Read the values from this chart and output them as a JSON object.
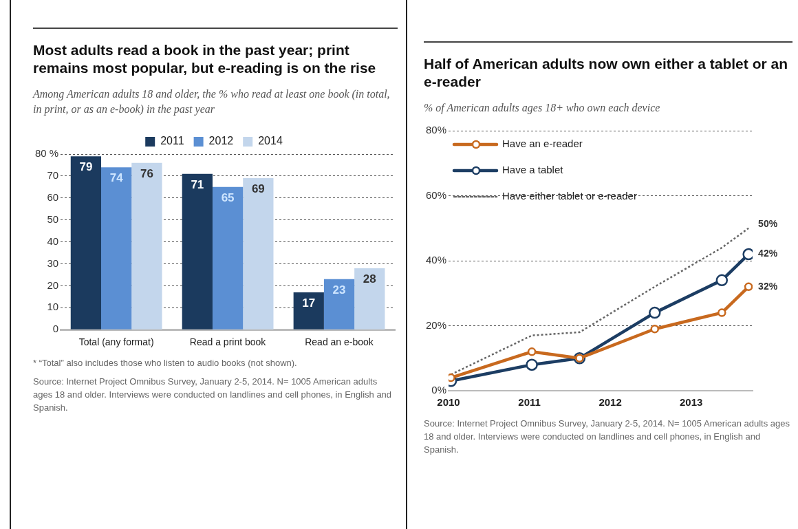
{
  "chart_data": [
    {
      "type": "bar",
      "title": "Most adults read a book in the past year; print remains most popular, but e-reading is on the rise",
      "subtitle": "Among American adults 18 and older, the % who read at least one book (in total, in print, or as an e-book) in the past year",
      "categories": [
        "Total (any format)",
        "Read a print book",
        "Read an e-book"
      ],
      "series": [
        {
          "name": "2011",
          "color": "#1b3a5e",
          "values": [
            79,
            71,
            17
          ]
        },
        {
          "name": "2012",
          "color": "#5b8fd3",
          "values": [
            74,
            65,
            23
          ]
        },
        {
          "name": "2014",
          "color": "#c3d6ec",
          "values": [
            76,
            69,
            28
          ]
        }
      ],
      "ylim": [
        0,
        80
      ],
      "yticks": [
        0,
        10,
        20,
        30,
        40,
        50,
        60,
        70,
        {
          "value": 80,
          "label": "80 %"
        }
      ],
      "grid": "y",
      "legend": "top",
      "data_labels": true,
      "annotations": [
        "* “Total” also includes those who listen to audio books (not shown).",
        "Source: Internet Project Omnibus Survey, January 2-5, 2014. N= 1005 American adults ages 18 and older. Interviews were conducted on landlines and cell phones, in English and Spanish."
      ]
    },
    {
      "type": "line",
      "title": "Half of American adults now own either a tablet or an e-reader",
      "subtitle": "% of American adults ages 18+ who own each device",
      "x": [
        2010.03,
        2011.03,
        2011.62,
        2012.55,
        2013.38,
        2013.71
      ],
      "series": [
        {
          "name": "Have an e-reader",
          "color": "#c8691e",
          "values": [
            4,
            12,
            10,
            19,
            24,
            32
          ],
          "value_labels": [
            null,
            null,
            null,
            null,
            null,
            "32%"
          ]
        },
        {
          "name": "Have a tablet",
          "color": "#1c3d63",
          "values": [
            3,
            8,
            10,
            24,
            34,
            42
          ],
          "value_labels": [
            null,
            null,
            null,
            null,
            null,
            "42%"
          ]
        },
        {
          "name": "Have either tablet or e-reader",
          "color": "#666666",
          "values": [
            5,
            17,
            18,
            32,
            44,
            50
          ],
          "value_labels": [
            null,
            null,
            null,
            null,
            null,
            "50%"
          ],
          "line_style": "dotted",
          "marker": "none"
        }
      ],
      "xlim": [
        2010,
        2013.76
      ],
      "xticks": [
        2010,
        2011,
        2012,
        2013
      ],
      "ylim": [
        0,
        80
      ],
      "yticks": [
        {
          "value": 0,
          "label": "0%"
        },
        {
          "value": 20,
          "label": "20%"
        },
        {
          "value": 40,
          "label": "40%"
        },
        {
          "value": 60,
          "label": "60%"
        },
        {
          "value": 80,
          "label": "80%"
        }
      ],
      "grid": "y",
      "legend": "top left",
      "marker": "circle",
      "line_style": "solid",
      "annotations": [
        "Source: Internet Project Omnibus Survey, January 2-5, 2014. N= 1005 American adults ages 18 and older. Interviews were conducted on landlines and cell phones, in English and Spanish."
      ]
    }
  ]
}
